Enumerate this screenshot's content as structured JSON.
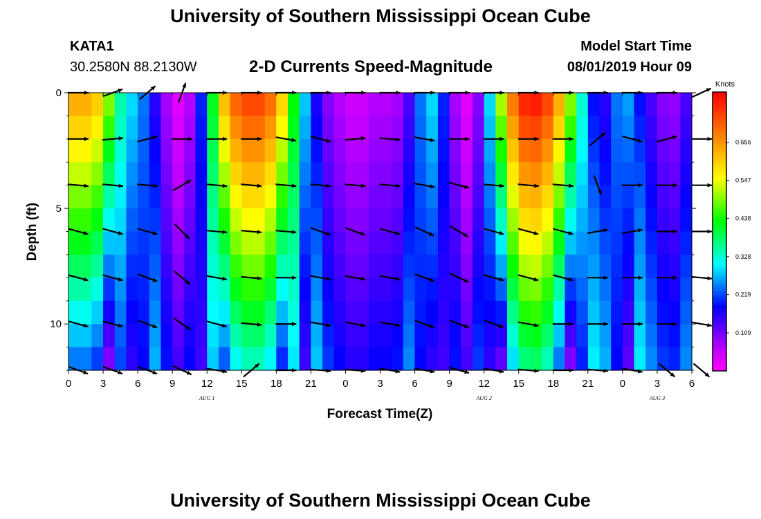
{
  "header": {
    "title": "University of Southern Mississippi Ocean Cube",
    "station_id": "KATA1",
    "station_coords": "30.2580N 88.2130W",
    "plot_title": "2-D Currents Speed-Magnitude",
    "model_start_label": "Model Start Time",
    "model_start_value": "08/01/2019 Hour 09"
  },
  "footer": {
    "title": "University of Southern Mississippi Ocean Cube"
  },
  "colors": {
    "colormap": [
      "#ff00ff",
      "#c000ff",
      "#6000ff",
      "#0000ff",
      "#0080ff",
      "#00ffff",
      "#00ff80",
      "#00ff00",
      "#80ff00",
      "#ffff00",
      "#ffc000",
      "#ff8000",
      "#ff4000",
      "#ff0000"
    ],
    "arrow": "#000000"
  },
  "chart_data": {
    "type": "heatmap",
    "title": "2-D Currents Speed-Magnitude",
    "xlabel": "Forecast Time(Z)",
    "ylabel": "Depth (ft)",
    "x_tick_labels": [
      "0",
      "3",
      "6",
      "9",
      "12",
      "15",
      "18",
      "21",
      "0",
      "3",
      "6",
      "9",
      "12",
      "15",
      "18",
      "21",
      "0",
      "3",
      "6"
    ],
    "x_range_hours": [
      0,
      54
    ],
    "y_ticks": [
      0,
      5,
      10
    ],
    "y_tick_labels": [
      "0",
      "5",
      "10"
    ],
    "y_range_ft": [
      0,
      12
    ],
    "date_labels": [
      {
        "text": "AUG 1",
        "hour": 12
      },
      {
        "text": "AUG 2",
        "hour": 36
      },
      {
        "text": "AUG 3",
        "hour": 51
      }
    ],
    "colorbar": {
      "unit": "Knots",
      "range": [
        0,
        0.8
      ],
      "tick_values": [
        0.109,
        0.219,
        0.328,
        0.438,
        0.547,
        0.656
      ],
      "tick_labels": [
        "0.109",
        "0.219",
        "0.328",
        "0.438",
        "0.547",
        "0.656"
      ]
    },
    "depth_levels_ft": [
      0,
      1,
      2,
      3,
      4,
      5,
      6,
      7,
      8,
      9,
      10,
      11,
      12
    ],
    "hour_steps": 54,
    "speed_profile_knots": {
      "description": "surface speed by forecast hour (0-54); lower layers decay per depth",
      "surface": [
        0.62,
        0.64,
        0.62,
        0.58,
        0.4,
        0.3,
        0.28,
        0.2,
        0.12,
        0.04,
        0.02,
        0.12,
        0.28,
        0.55,
        0.68,
        0.72,
        0.74,
        0.72,
        0.66,
        0.52,
        0.34,
        0.22,
        0.12,
        0.08,
        0.06,
        0.04,
        0.06,
        0.08,
        0.06,
        0.1,
        0.18,
        0.3,
        0.28,
        0.12,
        0.04,
        0.02,
        0.18,
        0.4,
        0.62,
        0.74,
        0.78,
        0.76,
        0.7,
        0.56,
        0.42,
        0.24,
        0.14,
        0.18,
        0.3,
        0.22,
        0.16,
        0.12,
        0.08,
        0.1,
        0.18
      ]
    },
    "vector_hours": [
      0,
      3,
      6,
      9,
      12,
      15,
      18,
      21,
      24,
      27,
      30,
      33,
      36,
      39,
      42,
      45,
      48,
      51,
      54
    ],
    "vector_depths_ft": [
      0,
      2,
      4,
      6,
      8,
      10,
      12
    ],
    "vector_angles_deg": [
      [
        0,
        20,
        40,
        70,
        0,
        0,
        0,
        0,
        0,
        0,
        0,
        0,
        0,
        0,
        0,
        0,
        0,
        0,
        25
      ],
      [
        0,
        5,
        15,
        0,
        0,
        0,
        -10,
        -15,
        5,
        -5,
        -10,
        0,
        0,
        0,
        0,
        40,
        -15,
        15,
        0
      ],
      [
        -5,
        -5,
        -5,
        30,
        -5,
        -5,
        -5,
        -5,
        -5,
        -5,
        -10,
        -15,
        -5,
        -5,
        -5,
        -70,
        0,
        0,
        0
      ],
      [
        -15,
        -15,
        -15,
        -45,
        -5,
        -5,
        -5,
        -20,
        -20,
        -15,
        -25,
        -30,
        -15,
        -15,
        -15,
        10,
        10,
        0,
        0
      ],
      [
        -15,
        -15,
        -20,
        -40,
        -10,
        -5,
        0,
        -10,
        -10,
        -10,
        -20,
        -25,
        -15,
        -15,
        -15,
        0,
        0,
        0,
        -5
      ],
      [
        -15,
        -15,
        -20,
        -35,
        -15,
        -5,
        0,
        -10,
        -10,
        -10,
        -20,
        -20,
        -20,
        -10,
        0,
        0,
        0,
        0,
        -10
      ],
      [
        -20,
        -20,
        -20,
        -25,
        -10,
        40,
        0,
        -5,
        -5,
        -10,
        -10,
        -15,
        -10,
        -5,
        0,
        -5,
        -10,
        -40,
        -40
      ]
    ]
  }
}
